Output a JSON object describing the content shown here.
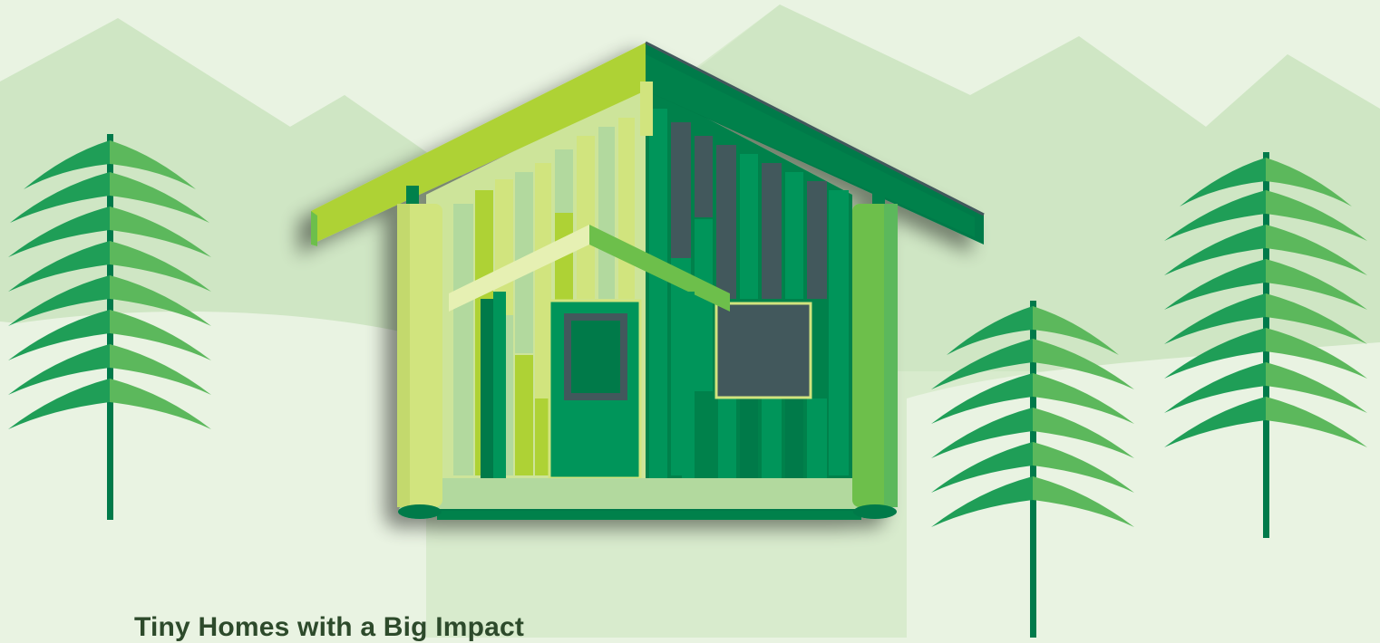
{
  "headline": "Tiny Homes with a Big Impact",
  "colors": {
    "background": "#e9f3e2",
    "mountain_far": "#d8ebcd",
    "mountain_near": "#cfe6c4",
    "lime": "#aed236",
    "pale_lime": "#d1e47e",
    "light_green": "#6dbf4b",
    "mint": "#b2d99e",
    "green": "#00955a",
    "dark_green": "#00814b",
    "deep_green": "#007a4a",
    "slate": "#43585b",
    "tree_trunk": "#007a4a",
    "tree_branch": "#5cb85c",
    "headline_text": "#2d4a2b"
  },
  "scene": {
    "subject": "tiny-home-illustration",
    "trees": [
      "tree-left",
      "tree-center-right",
      "tree-far-right"
    ]
  }
}
